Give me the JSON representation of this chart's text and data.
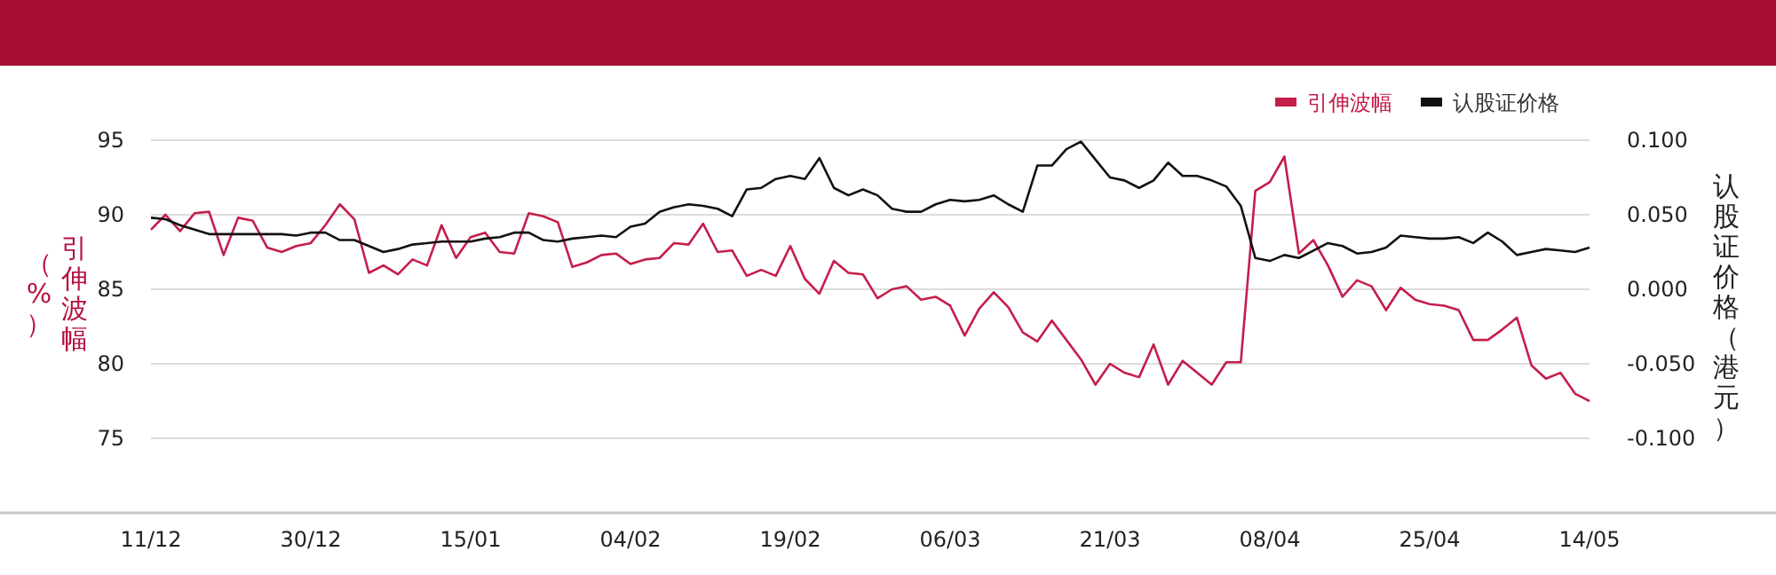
{
  "chart_data": {
    "type": "line",
    "categories": [
      "11/12",
      null,
      null,
      null,
      null,
      null,
      null,
      null,
      null,
      null,
      null,
      "30/12",
      null,
      null,
      null,
      null,
      null,
      null,
      null,
      null,
      null,
      null,
      "15/01",
      null,
      null,
      null,
      null,
      null,
      null,
      null,
      null,
      null,
      null,
      "04/02",
      null,
      null,
      null,
      null,
      null,
      null,
      null,
      null,
      null,
      null,
      "19/02",
      null,
      null,
      null,
      null,
      null,
      null,
      null,
      null,
      null,
      null,
      "06/03",
      null,
      null,
      null,
      null,
      null,
      null,
      null,
      null,
      null,
      null,
      "21/03",
      null,
      null,
      null,
      null,
      null,
      null,
      null,
      null,
      null,
      null,
      "08/04",
      null,
      null,
      null,
      null,
      null,
      null,
      null,
      null,
      null,
      null,
      "25/04",
      null,
      null,
      null,
      null,
      null,
      null,
      null,
      null,
      null,
      null,
      "14/05"
    ],
    "series": [
      {
        "name": "引伸波幅",
        "color": "#c41e4a",
        "values": [
          89.0,
          90.0,
          88.9,
          90.1,
          90.2,
          87.3,
          89.8,
          89.6,
          87.8,
          87.5,
          87.9,
          88.1,
          89.3,
          90.7,
          89.7,
          86.1,
          86.6,
          86.0,
          87.0,
          86.6,
          89.3,
          87.1,
          88.5,
          88.8,
          87.5,
          87.4,
          90.1,
          89.9,
          89.5,
          86.5,
          86.8,
          87.3,
          87.4,
          86.7,
          87.0,
          87.1,
          88.1,
          88.0,
          89.4,
          87.5,
          87.6,
          85.9,
          86.3,
          85.9,
          87.9,
          85.7,
          84.7,
          86.9,
          86.1,
          86.0,
          84.4,
          85.0,
          85.2,
          84.3,
          84.5,
          83.9,
          81.9,
          83.7,
          84.8,
          83.8,
          82.1,
          81.5,
          82.9,
          81.6,
          80.3,
          78.6,
          80.0,
          79.4,
          79.1,
          81.3,
          78.6,
          80.2,
          79.4,
          78.6,
          80.1,
          80.1,
          91.6,
          92.2,
          93.9,
          87.4,
          88.3,
          86.6,
          84.5,
          85.6,
          85.2,
          83.6,
          85.1,
          84.3,
          84.0,
          83.9,
          83.6,
          81.6,
          81.6,
          82.3,
          83.1,
          79.9,
          79.0,
          79.4,
          78.0,
          77.5
        ]
      },
      {
        "name": "认股证价格",
        "color": "#111111",
        "axis": "y2",
        "values": [
          0.048,
          0.047,
          0.043,
          0.04,
          0.037,
          0.037,
          0.037,
          0.037,
          0.037,
          0.037,
          0.036,
          0.038,
          0.038,
          0.033,
          0.033,
          0.029,
          0.025,
          0.027,
          0.03,
          0.031,
          0.032,
          0.032,
          0.032,
          0.034,
          0.035,
          0.038,
          0.038,
          0.033,
          0.032,
          0.034,
          0.035,
          0.036,
          0.035,
          0.042,
          0.044,
          0.052,
          0.055,
          0.057,
          0.056,
          0.054,
          0.049,
          0.067,
          0.068,
          0.074,
          0.076,
          0.074,
          0.088,
          0.068,
          0.063,
          0.067,
          0.063,
          0.054,
          0.052,
          0.052,
          0.057,
          0.06,
          0.059,
          0.06,
          0.063,
          0.057,
          0.052,
          0.083,
          0.083,
          0.094,
          0.099,
          0.087,
          0.075,
          0.073,
          0.068,
          0.073,
          0.085,
          0.076,
          0.076,
          0.073,
          0.069,
          0.056,
          0.021,
          0.019,
          0.023,
          0.021,
          0.026,
          0.031,
          0.029,
          0.024,
          0.025,
          0.028,
          0.036,
          0.035,
          0.034,
          0.034,
          0.035,
          0.031,
          0.038,
          0.032,
          0.023,
          0.025,
          0.027,
          0.026,
          0.025,
          0.028
        ]
      }
    ],
    "ylabel": "引伸波幅（%）",
    "y2label": "认股证价格（港元）",
    "ylim": [
      70,
      95
    ],
    "yticks": [
      75,
      80,
      85,
      90,
      95
    ],
    "y2lim": [
      -0.15,
      0.1
    ],
    "y2ticks": [
      {
        "value": -0.1,
        "label": "-0.100"
      },
      {
        "value": -0.05,
        "label": "-0.050"
      },
      {
        "value": 0,
        "label": "0.000"
      },
      {
        "value": 0.05,
        "label": "0.050"
      },
      {
        "value": 0.1,
        "label": "0.100"
      }
    ],
    "grid": "y",
    "legend": "top right",
    "marker": "none",
    "line_style": "solid"
  }
}
